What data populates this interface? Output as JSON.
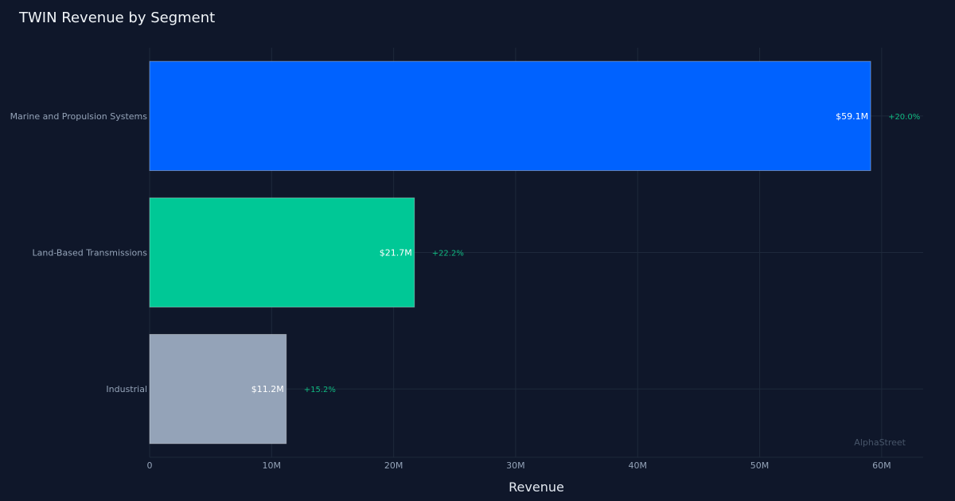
{
  "chart_data": {
    "type": "bar",
    "orientation": "horizontal",
    "title": "TWIN Revenue by Segment",
    "xlabel": "Revenue",
    "ylabel": "",
    "categories": [
      "Marine and Propulsion Systems",
      "Land-Based Transmissions",
      "Industrial"
    ],
    "values": [
      59.1,
      21.7,
      11.2
    ],
    "value_labels": [
      "$59.1M",
      "$21.7M",
      "$11.2M"
    ],
    "change_labels": [
      "+20.0%",
      "+22.2%",
      "+15.2%"
    ],
    "bar_colors": [
      "#0062ff",
      "#00c896",
      "#94a3b8"
    ],
    "change_color": "#10b981",
    "xlim": [
      0,
      63.4
    ],
    "x_ticks": [
      0,
      10,
      20,
      30,
      40,
      50,
      60
    ],
    "x_tick_labels": [
      "0",
      "10M",
      "20M",
      "30M",
      "40M",
      "50M",
      "60M"
    ],
    "grid": true,
    "watermark": "AlphaStreet"
  },
  "colors": {
    "background": "#0f172a",
    "grid": "#1e293b",
    "text_muted": "#94a3b8",
    "text_bright": "#f1f5f9"
  }
}
